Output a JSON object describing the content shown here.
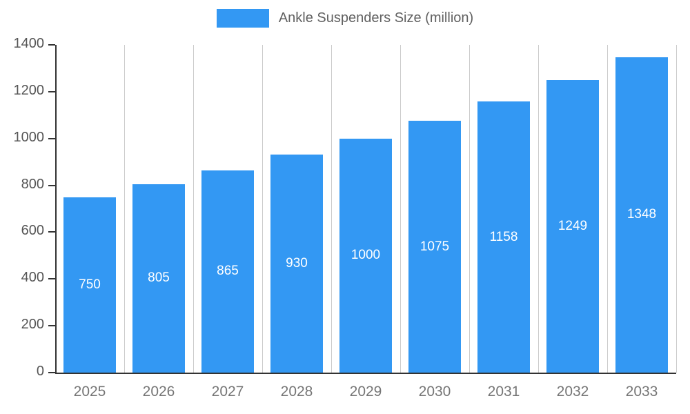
{
  "chart_data": {
    "type": "bar",
    "title": "Ankle Suspenders Size (million)",
    "legend": {
      "label": "Ankle Suspenders Size (million)",
      "position": "top-center"
    },
    "categories": [
      "2025",
      "2026",
      "2027",
      "2028",
      "2029",
      "2030",
      "2031",
      "2032",
      "2033"
    ],
    "values": [
      750,
      805,
      865,
      930,
      1000,
      1075,
      1158,
      1249,
      1348
    ],
    "xlabel": "",
    "ylabel": "",
    "ylim": [
      0,
      1400
    ],
    "yticks": [
      0,
      200,
      400,
      600,
      800,
      1000,
      1200,
      1400
    ],
    "grid": "vertical",
    "bar_value_labels_inside": true,
    "colors": {
      "bar": "#3398f3",
      "bar_label": "#ffffff",
      "grid": "#cccccc",
      "axis": "#333333",
      "y_tick_text": "#555555",
      "x_tick_text": "#757575",
      "legend_text": "#616161"
    }
  }
}
